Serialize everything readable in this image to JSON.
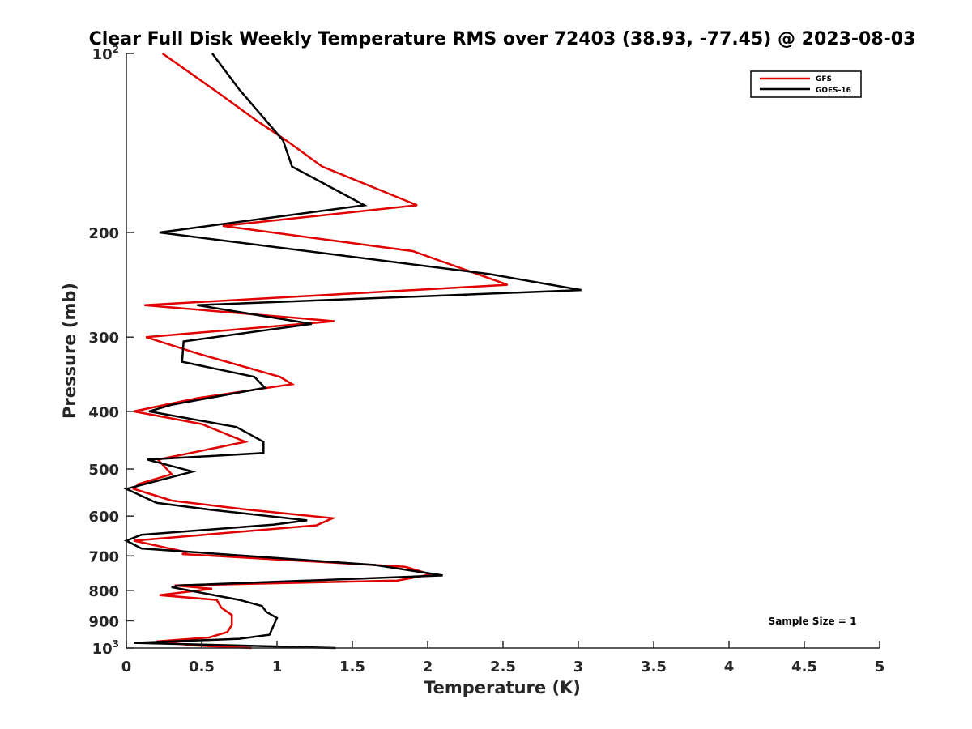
{
  "chart_data": {
    "type": "line",
    "title": "Clear Full Disk Weekly Temperature RMS over 72403 (38.93, -77.45) @ 2023-08-03",
    "xlabel": "Temperature (K)",
    "ylabel": "Pressure (mb)",
    "xlim": [
      0,
      5
    ],
    "ylim": [
      100,
      1000
    ],
    "y_scale": "log",
    "y_reversed": true,
    "x_ticks": [
      "0",
      "0.5",
      "1",
      "1.5",
      "2",
      "2.5",
      "3",
      "3.5",
      "4",
      "4.5",
      "5"
    ],
    "y_ticks": [
      {
        "value": 100,
        "base": "10",
        "exp": "2"
      },
      {
        "value": 200,
        "label": "200"
      },
      {
        "value": 300,
        "label": "300"
      },
      {
        "value": 400,
        "label": "400"
      },
      {
        "value": 500,
        "label": "500"
      },
      {
        "value": 600,
        "label": "600"
      },
      {
        "value": 700,
        "label": "700"
      },
      {
        "value": 800,
        "label": "800"
      },
      {
        "value": 900,
        "label": "900"
      },
      {
        "value": 1000,
        "base": "10",
        "exp": "3"
      }
    ],
    "legend_position": "top-right",
    "grid": false,
    "annotation": "Sample Size = 1",
    "series": [
      {
        "name": "GFS",
        "color": "#e00000",
        "points": [
          [
            0.24,
            100
          ],
          [
            0.58,
            115
          ],
          [
            0.87,
            130
          ],
          [
            1.06,
            140
          ],
          [
            1.3,
            155
          ],
          [
            1.93,
            180
          ],
          [
            0.64,
            195
          ],
          [
            1.9,
            215
          ],
          [
            2.53,
            245
          ],
          [
            0.12,
            265
          ],
          [
            1.38,
            282
          ],
          [
            0.13,
            300
          ],
          [
            0.48,
            320
          ],
          [
            1.02,
            350
          ],
          [
            1.1,
            360
          ],
          [
            0.47,
            380
          ],
          [
            0.05,
            400
          ],
          [
            0.5,
            420
          ],
          [
            0.79,
            450
          ],
          [
            0.21,
            482
          ],
          [
            0.3,
            510
          ],
          [
            0.08,
            530
          ],
          [
            0.05,
            540
          ],
          [
            0.3,
            565
          ],
          [
            0.8,
            585
          ],
          [
            1.37,
            605
          ],
          [
            1.26,
            622
          ],
          [
            0.05,
            660
          ],
          [
            0.4,
            690
          ],
          [
            0.37,
            695
          ],
          [
            1.85,
            730
          ],
          [
            2.02,
            752
          ],
          [
            1.8,
            770
          ],
          [
            0.32,
            785
          ],
          [
            0.57,
            795
          ],
          [
            0.22,
            815
          ],
          [
            0.6,
            830
          ],
          [
            0.63,
            855
          ],
          [
            0.7,
            880
          ],
          [
            0.7,
            915
          ],
          [
            0.67,
            940
          ],
          [
            0.55,
            960
          ],
          [
            0.2,
            975
          ],
          [
            0.45,
            990
          ],
          [
            0.83,
            1000
          ]
        ]
      },
      {
        "name": "GOES-16",
        "color": "#000000",
        "points": [
          [
            0.57,
            100
          ],
          [
            0.75,
            115
          ],
          [
            0.93,
            130
          ],
          [
            1.04,
            140
          ],
          [
            1.1,
            155
          ],
          [
            1.58,
            180
          ],
          [
            0.22,
            200
          ],
          [
            2.41,
            235
          ],
          [
            3.02,
            250
          ],
          [
            0.47,
            265
          ],
          [
            1.23,
            285
          ],
          [
            0.38,
            305
          ],
          [
            0.37,
            330
          ],
          [
            0.85,
            350
          ],
          [
            0.92,
            365
          ],
          [
            0.3,
            390
          ],
          [
            0.15,
            400
          ],
          [
            0.73,
            425
          ],
          [
            0.91,
            450
          ],
          [
            0.91,
            470
          ],
          [
            0.14,
            482
          ],
          [
            0.44,
            505
          ],
          [
            0.0,
            540
          ],
          [
            0.2,
            570
          ],
          [
            0.55,
            585
          ],
          [
            1.2,
            610
          ],
          [
            0.98,
            620
          ],
          [
            0.1,
            645
          ],
          [
            0.0,
            660
          ],
          [
            0.1,
            680
          ],
          [
            1.65,
            725
          ],
          [
            2.1,
            755
          ],
          [
            0.35,
            785
          ],
          [
            0.3,
            790
          ],
          [
            0.75,
            830
          ],
          [
            0.9,
            850
          ],
          [
            0.93,
            870
          ],
          [
            1.0,
            890
          ],
          [
            0.97,
            925
          ],
          [
            0.95,
            950
          ],
          [
            0.75,
            965
          ],
          [
            0.05,
            980
          ],
          [
            1.39,
            1000
          ]
        ]
      }
    ]
  }
}
